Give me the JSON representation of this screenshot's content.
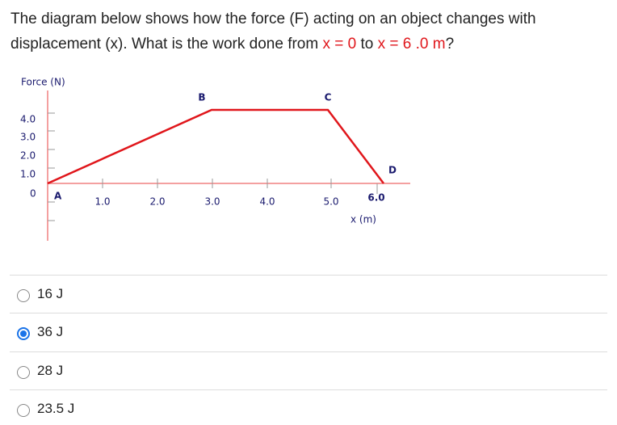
{
  "question": {
    "parts": [
      "The diagram below shows how the force (F) acting on an object changes with displacement (x). What is the work done from ",
      "x = 0",
      " to ",
      "x = 6 .0 m",
      "?"
    ]
  },
  "diagram": {
    "y_label": "Force (N)",
    "x_label": "x (m)",
    "y_ticks": [
      "4.0",
      "3.0",
      "2.0",
      "1.0",
      "0"
    ],
    "x_ticks": [
      "1.0",
      "2.0",
      "3.0",
      "4.0",
      "5.0",
      "6.0"
    ],
    "points": [
      "A",
      "B",
      "C",
      "D"
    ]
  },
  "options": [
    "16 J",
    "36 J",
    "28 J",
    "23.5 J"
  ]
}
